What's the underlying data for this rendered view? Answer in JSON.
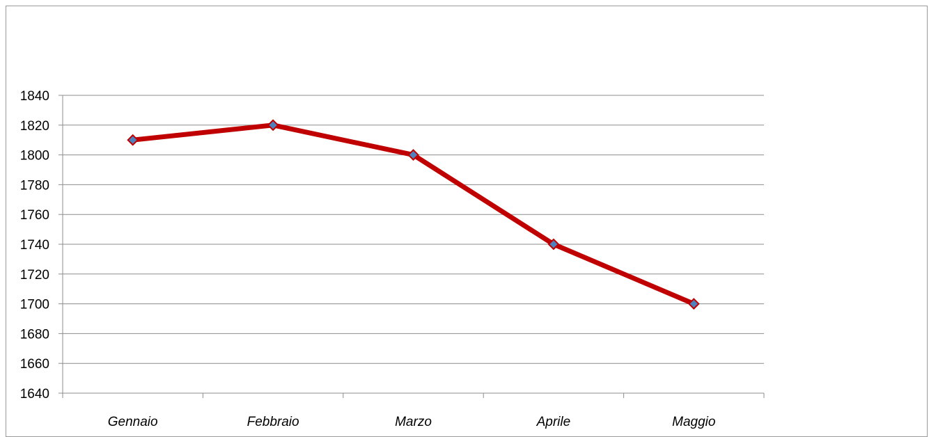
{
  "chart_data": {
    "type": "line",
    "title": "",
    "xlabel": "",
    "ylabel": "",
    "categories": [
      "Gennaio",
      "Febbraio",
      "Marzo",
      "Aprile",
      "Maggio"
    ],
    "series": [
      {
        "values": [
          1810,
          1820,
          1800,
          1740,
          1700
        ],
        "color": "#C00000",
        "marker_color": "#4F81BD"
      }
    ],
    "ylim": [
      1640,
      1840
    ],
    "yticks": [
      "1640",
      "1660",
      "1680",
      "1700",
      "1720",
      "1740",
      "1760",
      "1780",
      "1800",
      "1820",
      "1840"
    ],
    "grid": true,
    "legend": "none"
  }
}
